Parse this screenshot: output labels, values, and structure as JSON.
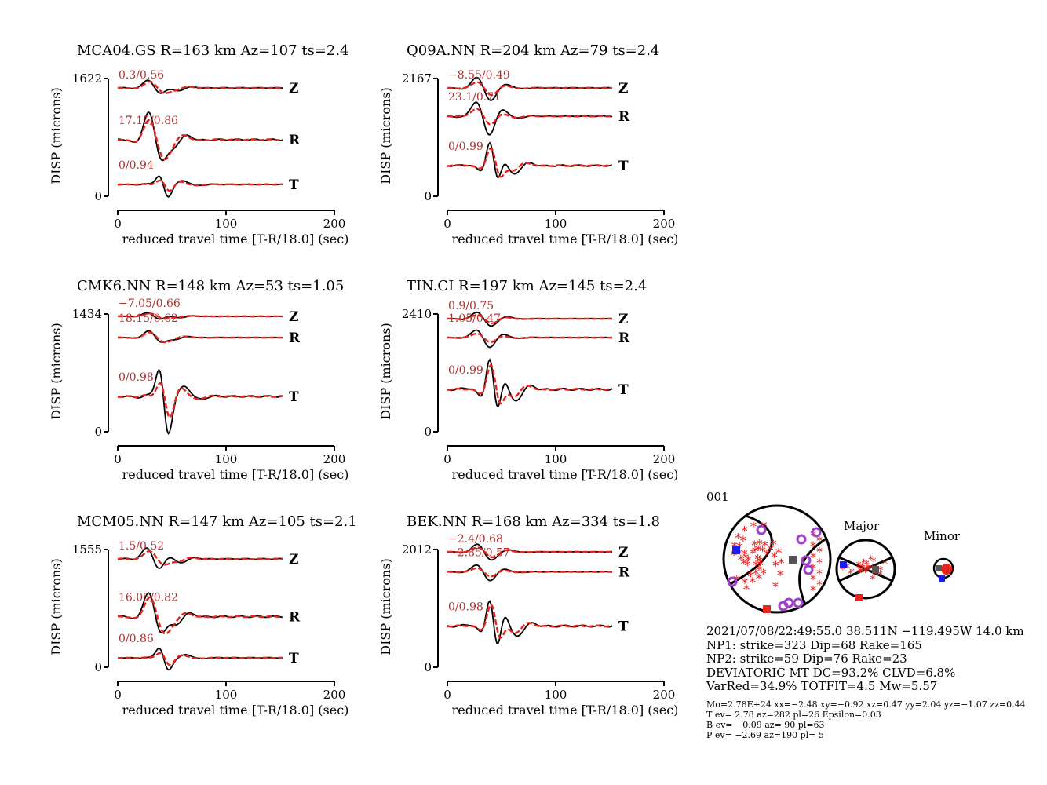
{
  "chart_data": {
    "type": "line",
    "colors": {
      "observed": "#000000",
      "synthetic": "#e8221c",
      "fit_label": "#b03030",
      "tension": "#e8221c",
      "pressure": "#1a1aff",
      "null_axis": "#555555",
      "ring": "#a040c8"
    },
    "xlabel": "reduced travel time [T-R/18.0] (sec)",
    "ylabel": "DISP (microns)",
    "xticks": [
      "0",
      "100",
      "200"
    ],
    "xlim": [
      0,
      200
    ],
    "panels": [
      {
        "title": "MCA04.GS R=163 km Az=107 ts=2.4",
        "ymax": "1622",
        "ymin": "0",
        "components": [
          {
            "name": "Z",
            "fit": "0.3/0.56"
          },
          {
            "name": "R",
            "fit": "17.15/0.86"
          },
          {
            "name": "T",
            "fit": "0/0.94"
          }
        ]
      },
      {
        "title": "Q09A.NN R=204 km Az=79 ts=2.4",
        "ymax": "2167",
        "ymin": "0",
        "components": [
          {
            "name": "Z",
            "fit": "−8.55/0.49"
          },
          {
            "name": "R",
            "fit": "23.1/0.71"
          },
          {
            "name": "T",
            "fit": "0/0.99"
          }
        ]
      },
      {
        "title": "CMK6.NN R=148 km Az=53 ts=1.05",
        "ymax": "1434",
        "ymin": "0",
        "components": [
          {
            "name": "Z",
            "fit": "−7.05/0.66"
          },
          {
            "name": "R",
            "fit": "18.15/0.62"
          },
          {
            "name": "T",
            "fit": "0/0.98"
          }
        ]
      },
      {
        "title": "TIN.CI R=197 km Az=145 ts=2.4",
        "ymax": "2410",
        "ymin": "0",
        "components": [
          {
            "name": "Z",
            "fit": "0.9/0.75"
          },
          {
            "name": "R",
            "fit": "1.05/0.47"
          },
          {
            "name": "T",
            "fit": "0/0.99"
          }
        ]
      },
      {
        "title": "MCM05.NN R=147 km Az=105 ts=2.1",
        "ymax": "1555",
        "ymin": "0",
        "components": [
          {
            "name": "Z",
            "fit": "1.5/0.52"
          },
          {
            "name": "R",
            "fit": "16.05/0.82"
          },
          {
            "name": "T",
            "fit": "0/0.86"
          }
        ]
      },
      {
        "title": "BEK.NN R=168 km Az=334 ts=1.8",
        "ymax": "2012",
        "ymin": "0",
        "components": [
          {
            "name": "Z",
            "fit": "−2.4/0.68"
          },
          {
            "name": "R",
            "fit": "−2.85/0.57"
          },
          {
            "name": "T",
            "fit": "0/0.98"
          }
        ]
      }
    ]
  },
  "mechanism": {
    "id": "001",
    "major_label": "Major",
    "minor_label": "Minor",
    "lines": [
      "2021/07/08/22:49:55.0 38.511N −119.495W 14.0 km",
      "NP1: strike=323 Dip=68 Rake=165",
      "NP2: strike=59 Dip=76 Rake=23",
      "DEVIATORIC MT DC=93.2% CLVD=6.8%",
      "VarRed=34.9% TOTFIT=4.5 Mw=5.57"
    ],
    "small_lines": [
      "Mo=2.78E+24 xx=−2.48 xy=−0.92 xz=0.47 yy=2.04 yz=−1.07 zz=0.44",
      "T ev=  2.78 az=282 pl=26 Epsilon=0.03",
      "B ev= −0.09 az= 90 pl=63",
      "P ev= −2.69 az=190 pl= 5"
    ]
  }
}
